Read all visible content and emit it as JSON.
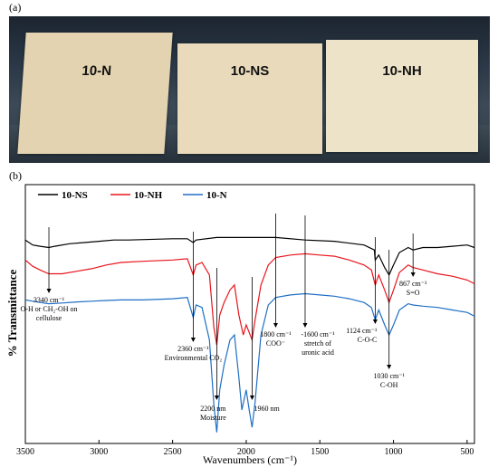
{
  "panel_a": {
    "label": "(a)",
    "sheets": [
      "10-N",
      "10-NS",
      "10-NH"
    ]
  },
  "panel_b": {
    "label": "(b)"
  },
  "chart_data": {
    "type": "line",
    "title": "",
    "xlabel": "Wavenumbers (cm⁻¹)",
    "ylabel": "% Transmittance",
    "xlim": [
      3500,
      450
    ],
    "x_reversed": true,
    "xticks": [
      "3500",
      "3000",
      "2500",
      "2000",
      "1500",
      "1000",
      "500"
    ],
    "grid": false,
    "legend_position": "top-left",
    "series": [
      {
        "name": "10-NS",
        "color": "#000000",
        "points": [
          [
            3500,
            0.8
          ],
          [
            3450,
            0.78
          ],
          [
            3400,
            0.775
          ],
          [
            3340,
            0.77
          ],
          [
            3300,
            0.775
          ],
          [
            3200,
            0.785
          ],
          [
            3100,
            0.79
          ],
          [
            3000,
            0.795
          ],
          [
            2900,
            0.8
          ],
          [
            2800,
            0.8
          ],
          [
            2500,
            0.805
          ],
          [
            2400,
            0.805
          ],
          [
            2360,
            0.79
          ],
          [
            2340,
            0.8
          ],
          [
            2200,
            0.81
          ],
          [
            2000,
            0.81
          ],
          [
            1800,
            0.81
          ],
          [
            1600,
            0.8
          ],
          [
            1400,
            0.795
          ],
          [
            1200,
            0.78
          ],
          [
            1130,
            0.76
          ],
          [
            1124,
            0.72
          ],
          [
            1100,
            0.74
          ],
          [
            1060,
            0.69
          ],
          [
            1030,
            0.66
          ],
          [
            1000,
            0.7
          ],
          [
            960,
            0.75
          ],
          [
            900,
            0.77
          ],
          [
            867,
            0.76
          ],
          [
            800,
            0.77
          ],
          [
            700,
            0.77
          ],
          [
            600,
            0.775
          ],
          [
            500,
            0.78
          ],
          [
            450,
            0.77
          ]
        ]
      },
      {
        "name": "10-NH",
        "color": "#e8141c",
        "points": [
          [
            3500,
            0.72
          ],
          [
            3450,
            0.695
          ],
          [
            3400,
            0.68
          ],
          [
            3340,
            0.665
          ],
          [
            3250,
            0.665
          ],
          [
            3150,
            0.675
          ],
          [
            3050,
            0.685
          ],
          [
            2950,
            0.7
          ],
          [
            2850,
            0.71
          ],
          [
            2700,
            0.715
          ],
          [
            2500,
            0.72
          ],
          [
            2400,
            0.725
          ],
          [
            2360,
            0.66
          ],
          [
            2340,
            0.7
          ],
          [
            2300,
            0.71
          ],
          [
            2250,
            0.66
          ],
          [
            2220,
            0.45
          ],
          [
            2200,
            0.38
          ],
          [
            2180,
            0.5
          ],
          [
            2150,
            0.55
          ],
          [
            2110,
            0.6
          ],
          [
            2080,
            0.62
          ],
          [
            2050,
            0.5
          ],
          [
            2020,
            0.42
          ],
          [
            2000,
            0.46
          ],
          [
            1980,
            0.43
          ],
          [
            1960,
            0.4
          ],
          [
            1940,
            0.48
          ],
          [
            1900,
            0.62
          ],
          [
            1850,
            0.7
          ],
          [
            1800,
            0.73
          ],
          [
            1700,
            0.74
          ],
          [
            1600,
            0.745
          ],
          [
            1500,
            0.74
          ],
          [
            1400,
            0.735
          ],
          [
            1300,
            0.72
          ],
          [
            1200,
            0.7
          ],
          [
            1150,
            0.68
          ],
          [
            1124,
            0.62
          ],
          [
            1100,
            0.66
          ],
          [
            1060,
            0.6
          ],
          [
            1030,
            0.55
          ],
          [
            1000,
            0.6
          ],
          [
            960,
            0.67
          ],
          [
            900,
            0.7
          ],
          [
            867,
            0.69
          ],
          [
            800,
            0.68
          ],
          [
            700,
            0.665
          ],
          [
            600,
            0.655
          ],
          [
            500,
            0.64
          ],
          [
            450,
            0.625
          ]
        ]
      },
      {
        "name": "10-N",
        "color": "#1f6fc4",
        "points": [
          [
            3500,
            0.56
          ],
          [
            3450,
            0.555
          ],
          [
            3400,
            0.55
          ],
          [
            3340,
            0.545
          ],
          [
            3250,
            0.548
          ],
          [
            3150,
            0.552
          ],
          [
            3050,
            0.555
          ],
          [
            2950,
            0.558
          ],
          [
            2850,
            0.56
          ],
          [
            2700,
            0.56
          ],
          [
            2500,
            0.565
          ],
          [
            2400,
            0.57
          ],
          [
            2360,
            0.49
          ],
          [
            2340,
            0.54
          ],
          [
            2300,
            0.53
          ],
          [
            2250,
            0.4
          ],
          [
            2220,
            0.14
          ],
          [
            2200,
            0.03
          ],
          [
            2180,
            0.2
          ],
          [
            2150,
            0.3
          ],
          [
            2110,
            0.4
          ],
          [
            2080,
            0.42
          ],
          [
            2050,
            0.25
          ],
          [
            2030,
            0.12
          ],
          [
            2000,
            0.2
          ],
          [
            1980,
            0.12
          ],
          [
            1960,
            0.05
          ],
          [
            1940,
            0.15
          ],
          [
            1900,
            0.42
          ],
          [
            1850,
            0.54
          ],
          [
            1800,
            0.57
          ],
          [
            1700,
            0.58
          ],
          [
            1600,
            0.585
          ],
          [
            1500,
            0.58
          ],
          [
            1400,
            0.575
          ],
          [
            1300,
            0.565
          ],
          [
            1200,
            0.55
          ],
          [
            1150,
            0.53
          ],
          [
            1124,
            0.48
          ],
          [
            1100,
            0.52
          ],
          [
            1060,
            0.46
          ],
          [
            1030,
            0.42
          ],
          [
            1000,
            0.46
          ],
          [
            960,
            0.52
          ],
          [
            900,
            0.545
          ],
          [
            867,
            0.54
          ],
          [
            800,
            0.535
          ],
          [
            700,
            0.53
          ],
          [
            600,
            0.52
          ],
          [
            500,
            0.51
          ],
          [
            450,
            0.495
          ]
        ]
      }
    ],
    "annotations": [
      {
        "x": 3340,
        "lines": [
          "3340 cm⁻¹",
          "O-H or CH₂-OH on",
          "cellulose"
        ]
      },
      {
        "x": 2360,
        "lines": [
          "2360 cm⁻¹",
          "Environmental CO₂"
        ]
      },
      {
        "x": 2200,
        "lines": [
          "2200 nm",
          "Moisture"
        ]
      },
      {
        "x": 1960,
        "lines": [
          "1960 nm"
        ]
      },
      {
        "x": 1800,
        "lines": [
          "1800 cm⁻¹",
          "COO⁻"
        ]
      },
      {
        "x": 1600,
        "lines": [
          "-1600 cm⁻¹",
          "stretch of",
          "uronic acid"
        ]
      },
      {
        "x": 1124,
        "lines": [
          "1124 cm⁻¹",
          "C-O-C"
        ]
      },
      {
        "x": 1030,
        "lines": [
          "1030 cm⁻¹",
          "C-OH"
        ]
      },
      {
        "x": 867,
        "lines": [
          "867 cm⁻¹",
          "S=O"
        ]
      }
    ]
  }
}
